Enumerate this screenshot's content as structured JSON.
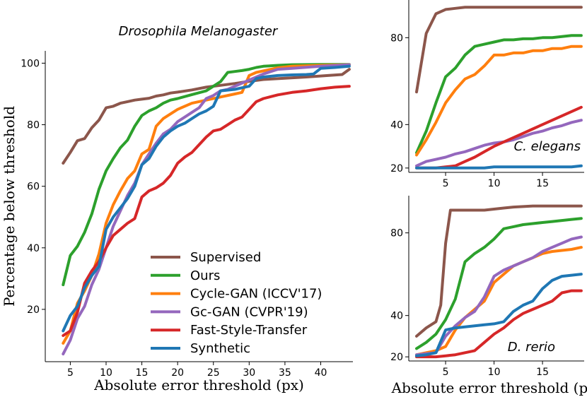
{
  "colors": {
    "Supervised": "#8c564b",
    "Ours": "#2ca02c",
    "Cycle-GAN (ICCV'17)": "#ff7f0e",
    "Gc-GAN (CVPR'19)": "#9467bd",
    "Fast-Style-Transfer": "#d62728",
    "Synthetic": "#1f77b4"
  },
  "legend": [
    "Supervised",
    "Ours",
    "Cycle-GAN (ICCV'17)",
    "Gc-GAN (CVPR'19)",
    "Fast-Style-Transfer",
    "Synthetic"
  ],
  "chart_data": [
    {
      "type": "line",
      "title": "Drosophila Melanogaster",
      "xlabel": "Absolute error threshold (px)",
      "ylabel": "Percentage below threshold",
      "xlim": [
        1.5,
        44.5
      ],
      "ylim": [
        3,
        104
      ],
      "xticks": [
        5,
        10,
        15,
        20,
        25,
        30,
        35,
        40
      ],
      "yticks": [
        20,
        40,
        60,
        80,
        100
      ],
      "legend_position": "lower-center",
      "series": [
        {
          "name": "Supervised",
          "x": [
            4,
            5,
            6,
            7,
            8,
            9,
            10,
            11,
            12,
            13,
            14,
            15,
            16,
            17,
            18,
            19,
            20,
            22,
            24,
            26,
            28,
            30,
            32,
            35,
            38,
            41,
            43,
            44
          ],
          "values": [
            67.5,
            71,
            74.8,
            75.5,
            79,
            81.5,
            85.5,
            86,
            87,
            87.5,
            88,
            88.3,
            88.6,
            89.3,
            89.7,
            90.3,
            90.6,
            91.3,
            92.2,
            92.8,
            93.4,
            94.1,
            94.7,
            95.1,
            95.5,
            96,
            96.3,
            98
          ]
        },
        {
          "name": "Ours",
          "x": [
            4,
            5,
            6,
            7,
            8,
            9,
            10,
            11,
            12,
            13,
            14,
            15,
            16,
            17,
            18,
            19,
            20,
            22,
            24,
            26,
            27,
            28,
            29,
            30,
            31,
            32,
            34,
            36,
            40,
            44
          ],
          "values": [
            28,
            37.5,
            40.5,
            45,
            51,
            59,
            65,
            69,
            72.5,
            75,
            79.5,
            83,
            84.5,
            85.5,
            87,
            88,
            88.5,
            89.8,
            91,
            94,
            97,
            97.3,
            97.6,
            98,
            98.6,
            99,
            99.3,
            99.5,
            99.6,
            99.6
          ]
        },
        {
          "name": "Cycle-GAN (ICCV'17)",
          "x": [
            4,
            5,
            6,
            7,
            8,
            9,
            10,
            11,
            12,
            13,
            14,
            15,
            16,
            17,
            18,
            19,
            20,
            22,
            24,
            26,
            28,
            29,
            30,
            31,
            32,
            34,
            36,
            40,
            44
          ],
          "values": [
            9,
            13,
            22,
            26,
            31,
            38,
            48,
            54,
            58.5,
            62.5,
            65,
            70.5,
            72,
            79.5,
            82,
            83.5,
            85,
            87,
            88,
            89,
            90,
            90.5,
            96,
            97,
            97.5,
            98.5,
            99,
            99.3,
            99.5
          ]
        },
        {
          "name": "Gc-GAN (CVPR'19)",
          "x": [
            4,
            5,
            6,
            7,
            8,
            9,
            10,
            11,
            12,
            13,
            14,
            15,
            16,
            17,
            18,
            19,
            20,
            21,
            22,
            23,
            24,
            25,
            26,
            27,
            28,
            29,
            30,
            32,
            34,
            36,
            40,
            44
          ],
          "values": [
            5.5,
            10,
            17,
            21,
            28,
            33,
            40,
            47,
            52,
            57,
            61,
            67,
            70.5,
            74,
            77,
            78.5,
            81,
            82.5,
            84,
            85.5,
            88.5,
            89.5,
            91,
            91.5,
            92.5,
            93.5,
            94.5,
            96.5,
            98,
            98.3,
            99,
            99.5
          ]
        },
        {
          "name": "Fast-Style-Transfer",
          "x": [
            4,
            5,
            6,
            7,
            8,
            9,
            10,
            11,
            12,
            13,
            14,
            15,
            16,
            17,
            18,
            19,
            20,
            21,
            22,
            23,
            24,
            25,
            26,
            27,
            28,
            29,
            30,
            31,
            32,
            34,
            36,
            38,
            40,
            42,
            44
          ],
          "values": [
            11.5,
            13,
            19,
            28.5,
            32.5,
            35.5,
            40,
            44,
            46,
            48,
            49.5,
            56.5,
            58.5,
            59.5,
            61,
            63.5,
            67.5,
            69.5,
            71,
            73.5,
            76,
            78,
            78.5,
            80,
            81.5,
            82.5,
            85,
            87.5,
            88.5,
            89.7,
            90.5,
            91,
            91.7,
            92.2,
            92.5
          ]
        },
        {
          "name": "Synthetic",
          "x": [
            4,
            5,
            6,
            7,
            8,
            9,
            10,
            11,
            12,
            13,
            14,
            15,
            16,
            17,
            18,
            19,
            20,
            21,
            22,
            23,
            24,
            25,
            26,
            28,
            30,
            31,
            32,
            34,
            36,
            38,
            39,
            40,
            42,
            44
          ],
          "values": [
            13,
            18,
            21,
            27,
            31,
            34,
            46,
            50,
            53,
            56,
            60,
            67,
            69,
            73,
            76,
            78,
            79.5,
            80.5,
            82,
            83.5,
            84.5,
            86,
            91,
            91.5,
            92.5,
            95,
            95.5,
            96,
            96.2,
            96.3,
            96.5,
            98.3,
            98.6,
            99
          ]
        }
      ]
    },
    {
      "type": "line",
      "title": "C. elegans",
      "xlabel": "",
      "ylabel": "",
      "xlim": [
        1.2,
        19.3
      ],
      "ylim": [
        18,
        98
      ],
      "xticks": [
        5,
        10,
        15
      ],
      "yticks": [
        20,
        40,
        80
      ],
      "series": [
        {
          "name": "Supervised",
          "x": [
            2,
            3,
            4,
            5,
            6,
            7,
            8,
            10,
            12,
            14,
            16,
            18,
            19
          ],
          "values": [
            55,
            82,
            91,
            93,
            93.5,
            94,
            94,
            94,
            94,
            94,
            94,
            94,
            94
          ]
        },
        {
          "name": "Ours",
          "x": [
            2,
            3,
            4,
            5,
            6,
            7,
            8,
            9,
            10,
            11,
            12,
            13,
            14,
            15,
            16,
            17,
            18,
            19
          ],
          "values": [
            27,
            37,
            50,
            62,
            66,
            72,
            76,
            77,
            78,
            79,
            79,
            79.5,
            79.5,
            80,
            80,
            80.5,
            81,
            81
          ]
        },
        {
          "name": "Cycle-GAN (ICCV'17)",
          "x": [
            2,
            3,
            4,
            5,
            6,
            7,
            8,
            9,
            10,
            11,
            12,
            13,
            14,
            15,
            16,
            17,
            18,
            19
          ],
          "values": [
            26,
            33,
            41,
            50,
            56,
            61,
            63,
            67,
            72,
            72,
            73,
            73,
            74,
            74,
            75,
            75,
            76,
            76
          ]
        },
        {
          "name": "Gc-GAN (CVPR'19)",
          "x": [
            2,
            3,
            4,
            5,
            6,
            7,
            8,
            9,
            10,
            11,
            12,
            13,
            14,
            15,
            16,
            17,
            18,
            19
          ],
          "values": [
            21,
            23,
            24,
            25,
            26.5,
            27.5,
            29,
            30.5,
            31.5,
            32,
            33,
            34.5,
            36,
            37,
            38.5,
            39.5,
            41,
            42
          ]
        },
        {
          "name": "Fast-Style-Transfer",
          "x": [
            2,
            3,
            4,
            5,
            6,
            7,
            8,
            9,
            10,
            11,
            12,
            13,
            14,
            15,
            16,
            17,
            18,
            19
          ],
          "values": [
            20,
            20,
            20,
            20.5,
            21,
            23,
            25,
            27.5,
            30,
            32,
            34,
            36,
            38,
            40,
            42,
            44,
            46,
            48
          ]
        },
        {
          "name": "Synthetic",
          "x": [
            2,
            3,
            4,
            5,
            6,
            7,
            8,
            9,
            10,
            11,
            12,
            13,
            14,
            15,
            16,
            17,
            18,
            19
          ],
          "values": [
            20,
            20,
            20,
            20,
            20,
            20,
            20,
            20,
            20.5,
            20.5,
            20.5,
            20.5,
            20.5,
            20.5,
            20.5,
            20.5,
            20.5,
            21
          ]
        }
      ]
    },
    {
      "type": "line",
      "title": "D. rerio",
      "xlabel": "Absolute error threshold (px)",
      "ylabel": "",
      "xlim": [
        1.2,
        19.3
      ],
      "ylim": [
        18,
        98
      ],
      "xticks": [
        5,
        10,
        15
      ],
      "yticks": [
        20,
        40,
        80
      ],
      "series": [
        {
          "name": "Supervised",
          "x": [
            2,
            3,
            4,
            4.5,
            5,
            5.5,
            6,
            7,
            8,
            9,
            10,
            11,
            12,
            14,
            16,
            18,
            19
          ],
          "values": [
            30,
            34,
            37,
            45,
            75,
            91,
            91,
            91,
            91,
            91,
            91.5,
            92,
            92.5,
            93,
            93,
            93,
            93
          ]
        },
        {
          "name": "Ours",
          "x": [
            2,
            3,
            4,
            5,
            6,
            7,
            8,
            9,
            10,
            11,
            12,
            13,
            14,
            15,
            16,
            17,
            18,
            19
          ],
          "values": [
            24,
            27,
            31,
            38,
            48,
            66,
            70,
            73,
            77,
            82,
            83,
            84,
            84.5,
            85,
            85.5,
            86,
            86.5,
            87
          ]
        },
        {
          "name": "Cycle-GAN (ICCV'17)",
          "x": [
            2,
            3,
            4,
            5,
            6,
            7,
            8,
            9,
            10,
            11,
            12,
            13,
            14,
            15,
            16,
            17,
            18,
            19
          ],
          "values": [
            21,
            22,
            23,
            25,
            33,
            39,
            43,
            47,
            56,
            60,
            64,
            66,
            68,
            70,
            71,
            71.5,
            72,
            73
          ]
        },
        {
          "name": "Gc-GAN (CVPR'19)",
          "x": [
            2,
            3,
            4,
            5,
            6,
            7,
            8,
            9,
            10,
            11,
            12,
            13,
            14,
            15,
            16,
            17,
            18,
            19
          ],
          "values": [
            21,
            21.5,
            22,
            30,
            35,
            39,
            42,
            49,
            59,
            62,
            64,
            66,
            68,
            71,
            73,
            75,
            77,
            78
          ]
        },
        {
          "name": "Fast-Style-Transfer",
          "x": [
            2,
            3,
            4,
            5,
            6,
            7,
            8,
            9,
            10,
            11,
            12,
            13,
            14,
            15,
            16,
            17,
            18,
            19
          ],
          "values": [
            20,
            20,
            20,
            20.5,
            21,
            22,
            23,
            27,
            31,
            34,
            38,
            41,
            43,
            45,
            47,
            51,
            52,
            52
          ]
        },
        {
          "name": "Synthetic",
          "x": [
            2,
            3,
            4,
            5,
            6,
            7,
            8,
            9,
            10,
            11,
            12,
            13,
            14,
            15,
            16,
            17,
            18,
            19
          ],
          "values": [
            20.5,
            21,
            22,
            33,
            34,
            34.5,
            35,
            35.5,
            36,
            37,
            42,
            45,
            47,
            53,
            57,
            59,
            59.5,
            60
          ]
        }
      ]
    }
  ]
}
